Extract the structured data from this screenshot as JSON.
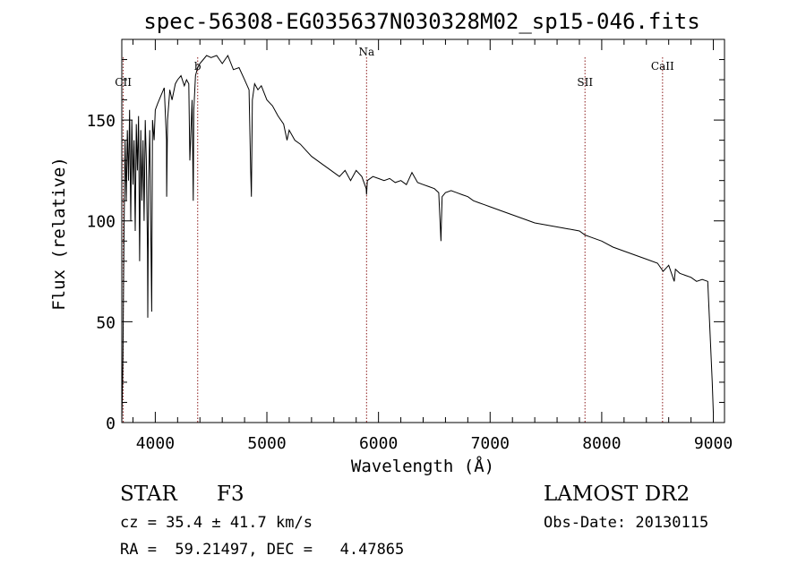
{
  "chart_data": {
    "type": "line",
    "title": "spec-56308-EG035637N030328M02_sp15-046.fits",
    "xlabel": "Wavelength (Å)",
    "ylabel": "Flux (relative)",
    "xlim": [
      3700,
      9100
    ],
    "ylim": [
      0,
      190
    ],
    "xticks": [
      4000,
      5000,
      6000,
      7000,
      8000,
      9000
    ],
    "yticks": [
      0,
      50,
      100,
      150
    ],
    "series": [
      {
        "name": "spectrum",
        "x": [
          3700,
          3710,
          3720,
          3730,
          3740,
          3750,
          3760,
          3770,
          3780,
          3790,
          3800,
          3810,
          3820,
          3830,
          3840,
          3850,
          3860,
          3870,
          3880,
          3890,
          3900,
          3910,
          3920,
          3930,
          3933,
          3940,
          3950,
          3960,
          3968,
          3975,
          3990,
          4000,
          4020,
          4050,
          4080,
          4100,
          4102,
          4110,
          4130,
          4150,
          4180,
          4200,
          4230,
          4260,
          4280,
          4300,
          4310,
          4330,
          4340,
          4345,
          4360,
          4380,
          4400,
          4430,
          4460,
          4500,
          4550,
          4600,
          4650,
          4700,
          4750,
          4800,
          4840,
          4855,
          4861,
          4870,
          4890,
          4920,
          4950,
          5000,
          5050,
          5100,
          5150,
          5180,
          5200,
          5250,
          5300,
          5350,
          5400,
          5450,
          5500,
          5550,
          5600,
          5650,
          5700,
          5750,
          5800,
          5850,
          5890,
          5893,
          5900,
          5950,
          6000,
          6050,
          6100,
          6150,
          6200,
          6250,
          6300,
          6350,
          6400,
          6450,
          6500,
          6540,
          6560,
          6563,
          6570,
          6600,
          6650,
          6700,
          6750,
          6800,
          6850,
          6900,
          6950,
          7000,
          7100,
          7200,
          7300,
          7400,
          7500,
          7600,
          7700,
          7800,
          7850,
          7900,
          8000,
          8100,
          8200,
          8300,
          8400,
          8500,
          8550,
          8600,
          8650,
          8660,
          8700,
          8750,
          8800,
          8850,
          8900,
          8950,
          8990,
          9000
        ],
        "y": [
          0,
          30,
          95,
          140,
          110,
          145,
          120,
          155,
          100,
          150,
          118,
          140,
          95,
          148,
          125,
          152,
          80,
          145,
          110,
          140,
          100,
          150,
          130,
          85,
          52,
          120,
          145,
          95,
          55,
          150,
          140,
          155,
          158,
          162,
          166,
          140,
          112,
          150,
          165,
          160,
          168,
          170,
          172,
          167,
          170,
          168,
          130,
          160,
          110,
          155,
          172,
          176,
          178,
          180,
          182,
          181,
          182,
          178,
          182,
          175,
          176,
          170,
          165,
          125,
          112,
          160,
          168,
          165,
          167,
          160,
          157,
          152,
          148,
          140,
          145,
          140,
          138,
          135,
          132,
          130,
          128,
          126,
          124,
          122,
          125,
          120,
          125,
          122,
          116,
          113,
          120,
          122,
          121,
          120,
          121,
          119,
          120,
          118,
          124,
          119,
          118,
          117,
          116,
          114,
          90,
          98,
          112,
          114,
          115,
          114,
          113,
          112,
          110,
          109,
          108,
          107,
          105,
          103,
          101,
          99,
          98,
          97,
          96,
          95,
          93,
          92,
          90,
          87,
          85,
          83,
          81,
          79,
          75,
          78,
          70,
          76,
          74,
          73,
          72,
          70,
          71,
          70,
          20,
          5
        ]
      }
    ],
    "lines": [
      {
        "label": "CII",
        "x": 3713
      },
      {
        "label": "b",
        "x": 4380
      },
      {
        "label": "Na",
        "x": 5893
      },
      {
        "label": "SII",
        "x": 7850
      },
      {
        "label": "CaII",
        "x": 8545
      }
    ]
  },
  "info": {
    "object_class": "STAR",
    "subclass": "F3",
    "survey": "LAMOST DR2",
    "redshift": "cz = 35.4 ± 41.7 km/s",
    "obs_date": "Obs-Date: 20130115",
    "coords": "RA =  59.21497, DEC =   4.47865"
  },
  "colors": {
    "line": "#000000",
    "marker": "#8b1a1a"
  }
}
